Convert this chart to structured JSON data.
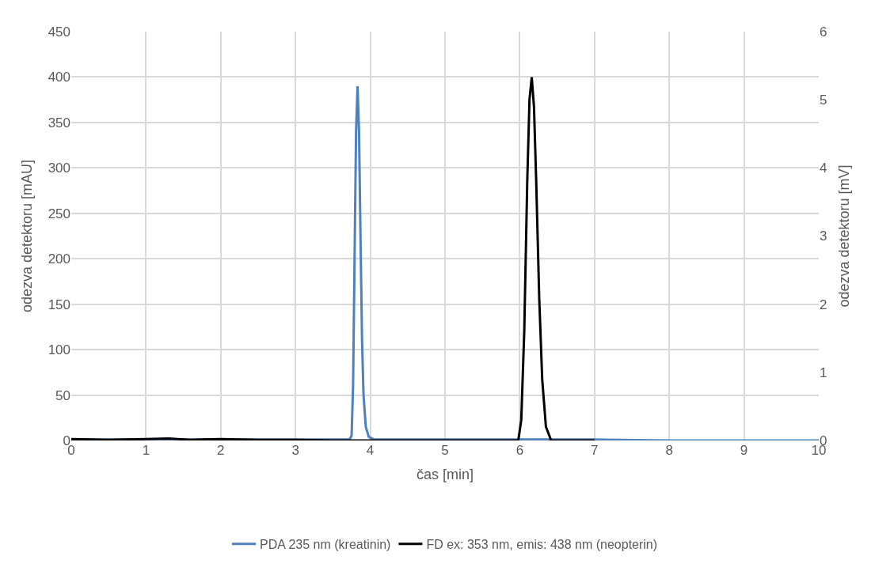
{
  "chart_data": {
    "type": "line",
    "xlabel": "čas [min]",
    "ylabel": "odezva detektoru [mAU]",
    "y2label": "odezva detektoru [mV]",
    "xlim": [
      0,
      10
    ],
    "xticks": [
      0,
      1,
      2,
      3,
      4,
      5,
      6,
      7,
      8,
      9,
      10
    ],
    "ylim": [
      0,
      450
    ],
    "yticks": [
      0,
      50,
      100,
      150,
      200,
      250,
      300,
      350,
      400,
      450
    ],
    "y2lim": [
      0,
      6
    ],
    "y2ticks": [
      0,
      1,
      2,
      3,
      4,
      5,
      6
    ],
    "grid": true,
    "legend": "bottom",
    "marker": "none",
    "line_style": "solid",
    "series": [
      {
        "name": "PDA 235 nm (kreatinin)",
        "color": "#4f81bd",
        "x": [
          0,
          1,
          2,
          3,
          3.5,
          3.72,
          3.75,
          3.77,
          3.79,
          3.81,
          3.83,
          3.85,
          3.87,
          3.89,
          3.91,
          3.94,
          3.98,
          4.05,
          4.5,
          5,
          6,
          7,
          8,
          9,
          10
        ],
        "values": [
          1,
          1,
          1,
          1,
          1,
          1,
          5,
          60,
          200,
          340,
          390,
          340,
          220,
          110,
          50,
          15,
          4,
          1,
          1,
          1,
          1,
          1,
          0,
          0,
          0
        ]
      },
      {
        "name": "FD ex: 353 nm, emis: 438 nm (neopterin)",
        "color": "#000000",
        "axis": "y2",
        "x": [
          0,
          0.5,
          1,
          1.3,
          1.6,
          2,
          2.5,
          3,
          3.5,
          4,
          5,
          5.98,
          6.02,
          6.06,
          6.1,
          6.13,
          6.16,
          6.19,
          6.22,
          6.26,
          6.3,
          6.35,
          6.42,
          7
        ],
        "values": [
          0.02,
          0.01,
          0.02,
          0.03,
          0.01,
          0.02,
          0.01,
          0.01,
          0,
          0,
          0,
          0,
          0.3,
          1.6,
          3.8,
          5.0,
          5.33,
          4.9,
          3.8,
          2.1,
          0.9,
          0.2,
          0,
          0
        ]
      }
    ]
  }
}
